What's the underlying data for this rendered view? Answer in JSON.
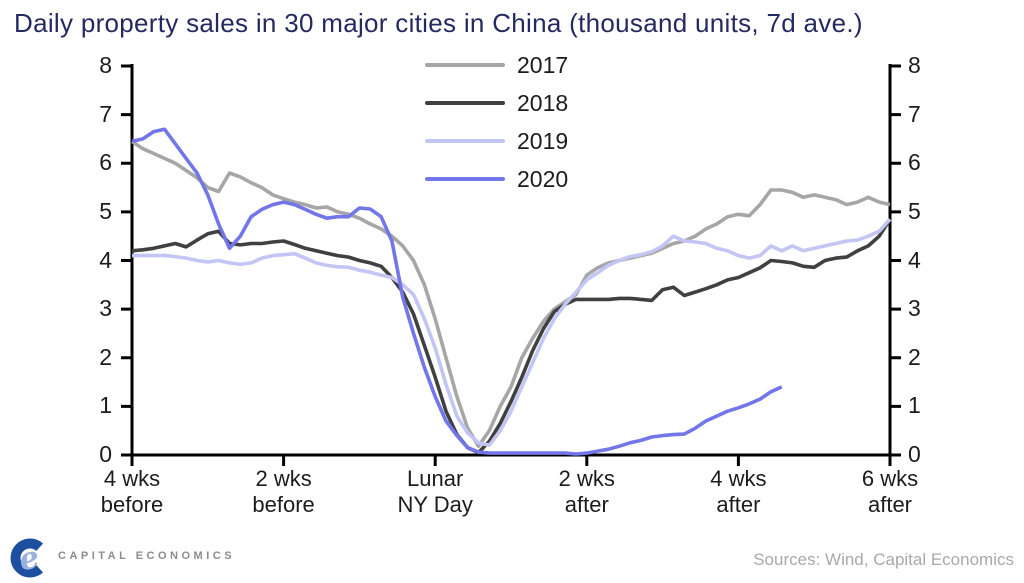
{
  "title": "Daily property sales in 30 major cities in China (thousand units, 7d ave.)",
  "footer": {
    "logo_text": "CAPITAL ECONOMICS",
    "sources": "Sources: Wind, Capital Economics"
  },
  "colors": {
    "title": "#242a60",
    "axis": "#000000",
    "tick_label": "#1c1c1c",
    "sources_text": "#a9a9a9",
    "logo_c": "#1d4fa0",
    "logo_e": "#9bb1dd",
    "logo_text": "#8c8c8c"
  },
  "chart_data": {
    "type": "line",
    "title": "Daily property sales in 30 major cities in China (thousand units, 7d ave.)",
    "x_axis": {
      "unit": "days relative to Lunar New Year Day",
      "range": [
        -28,
        42
      ],
      "ticks": [
        {
          "pos": -28,
          "label": [
            "4 wks",
            "before"
          ]
        },
        {
          "pos": -14,
          "label": [
            "2 wks",
            "before"
          ]
        },
        {
          "pos": 0,
          "label": [
            "Lunar",
            "NY Day"
          ]
        },
        {
          "pos": 14,
          "label": [
            "2 wks",
            "after"
          ]
        },
        {
          "pos": 28,
          "label": [
            "4 wks",
            "after"
          ]
        },
        {
          "pos": 42,
          "label": [
            "6 wks",
            "after"
          ]
        }
      ]
    },
    "y_axis": {
      "min": 0,
      "max": 8,
      "tick_step": 1,
      "tick_labels": [
        "0",
        "1",
        "2",
        "3",
        "4",
        "5",
        "6",
        "7",
        "8"
      ],
      "sides": [
        "left",
        "right"
      ],
      "grid": false
    },
    "legend_position": "top-center",
    "series": [
      {
        "name": "2017",
        "color": "#a6a6a6",
        "points": [
          [
            -28,
            6.45
          ],
          [
            -27,
            6.3
          ],
          [
            -26,
            6.2
          ],
          [
            -25,
            6.1
          ],
          [
            -24,
            6.0
          ],
          [
            -23,
            5.85
          ],
          [
            -22,
            5.7
          ],
          [
            -21,
            5.5
          ],
          [
            -20,
            5.42
          ],
          [
            -19,
            5.8
          ],
          [
            -18,
            5.72
          ],
          [
            -17,
            5.6
          ],
          [
            -16,
            5.5
          ],
          [
            -15,
            5.35
          ],
          [
            -14,
            5.27
          ],
          [
            -13,
            5.2
          ],
          [
            -12,
            5.15
          ],
          [
            -11,
            5.08
          ],
          [
            -10,
            5.1
          ],
          [
            -9,
            5.0
          ],
          [
            -8,
            4.95
          ],
          [
            -7,
            4.87
          ],
          [
            -6,
            4.75
          ],
          [
            -5,
            4.65
          ],
          [
            -4,
            4.5
          ],
          [
            -3,
            4.3
          ],
          [
            -2,
            4.0
          ],
          [
            -1,
            3.5
          ],
          [
            0,
            2.8
          ],
          [
            1,
            2.0
          ],
          [
            2,
            1.2
          ],
          [
            3,
            0.55
          ],
          [
            4,
            0.18
          ],
          [
            5,
            0.5
          ],
          [
            6,
            1.0
          ],
          [
            7,
            1.4
          ],
          [
            8,
            2.0
          ],
          [
            9,
            2.4
          ],
          [
            10,
            2.75
          ],
          [
            11,
            3.0
          ],
          [
            12,
            3.15
          ],
          [
            13,
            3.3
          ],
          [
            14,
            3.7
          ],
          [
            15,
            3.85
          ],
          [
            16,
            3.95
          ],
          [
            17,
            4.0
          ],
          [
            18,
            4.05
          ],
          [
            19,
            4.1
          ],
          [
            20,
            4.15
          ],
          [
            21,
            4.25
          ],
          [
            22,
            4.35
          ],
          [
            23,
            4.4
          ],
          [
            24,
            4.5
          ],
          [
            25,
            4.65
          ],
          [
            26,
            4.75
          ],
          [
            27,
            4.9
          ],
          [
            28,
            4.95
          ],
          [
            29,
            4.92
          ],
          [
            30,
            5.15
          ],
          [
            31,
            5.45
          ],
          [
            32,
            5.45
          ],
          [
            33,
            5.4
          ],
          [
            34,
            5.3
          ],
          [
            35,
            5.35
          ],
          [
            36,
            5.3
          ],
          [
            37,
            5.25
          ],
          [
            38,
            5.15
          ],
          [
            39,
            5.2
          ],
          [
            40,
            5.3
          ],
          [
            41,
            5.2
          ],
          [
            42,
            5.15
          ]
        ]
      },
      {
        "name": "2018",
        "color": "#404040",
        "points": [
          [
            -28,
            4.2
          ],
          [
            -27,
            4.22
          ],
          [
            -26,
            4.25
          ],
          [
            -25,
            4.3
          ],
          [
            -24,
            4.35
          ],
          [
            -23,
            4.28
          ],
          [
            -22,
            4.42
          ],
          [
            -21,
            4.55
          ],
          [
            -20,
            4.6
          ],
          [
            -19,
            4.35
          ],
          [
            -18,
            4.32
          ],
          [
            -17,
            4.35
          ],
          [
            -16,
            4.35
          ],
          [
            -15,
            4.38
          ],
          [
            -14,
            4.4
          ],
          [
            -13,
            4.33
          ],
          [
            -12,
            4.25
          ],
          [
            -11,
            4.2
          ],
          [
            -10,
            4.15
          ],
          [
            -9,
            4.1
          ],
          [
            -8,
            4.07
          ],
          [
            -7,
            4.0
          ],
          [
            -6,
            3.95
          ],
          [
            -5,
            3.88
          ],
          [
            -4,
            3.65
          ],
          [
            -3,
            3.35
          ],
          [
            -2,
            2.9
          ],
          [
            -1,
            2.25
          ],
          [
            0,
            1.6
          ],
          [
            1,
            0.9
          ],
          [
            2,
            0.42
          ],
          [
            3,
            0.15
          ],
          [
            4,
            0.05
          ],
          [
            5,
            0.28
          ],
          [
            6,
            0.65
          ],
          [
            7,
            1.1
          ],
          [
            8,
            1.6
          ],
          [
            9,
            2.15
          ],
          [
            10,
            2.6
          ],
          [
            11,
            2.95
          ],
          [
            12,
            3.1
          ],
          [
            13,
            3.2
          ],
          [
            14,
            3.2
          ],
          [
            15,
            3.2
          ],
          [
            16,
            3.2
          ],
          [
            17,
            3.22
          ],
          [
            18,
            3.22
          ],
          [
            19,
            3.2
          ],
          [
            20,
            3.18
          ],
          [
            21,
            3.4
          ],
          [
            22,
            3.45
          ],
          [
            23,
            3.28
          ],
          [
            24,
            3.35
          ],
          [
            25,
            3.42
          ],
          [
            26,
            3.5
          ],
          [
            27,
            3.6
          ],
          [
            28,
            3.65
          ],
          [
            29,
            3.75
          ],
          [
            30,
            3.85
          ],
          [
            31,
            4.0
          ],
          [
            32,
            3.98
          ],
          [
            33,
            3.95
          ],
          [
            34,
            3.88
          ],
          [
            35,
            3.86
          ],
          [
            36,
            4.0
          ],
          [
            37,
            4.05
          ],
          [
            38,
            4.07
          ],
          [
            39,
            4.2
          ],
          [
            40,
            4.3
          ],
          [
            41,
            4.5
          ],
          [
            42,
            4.85
          ]
        ]
      },
      {
        "name": "2019",
        "color": "#c3c6f5",
        "points": [
          [
            -28,
            4.1
          ],
          [
            -27,
            4.1
          ],
          [
            -26,
            4.1
          ],
          [
            -25,
            4.1
          ],
          [
            -24,
            4.08
          ],
          [
            -23,
            4.05
          ],
          [
            -22,
            4.0
          ],
          [
            -21,
            3.97
          ],
          [
            -20,
            4.0
          ],
          [
            -19,
            3.95
          ],
          [
            -18,
            3.92
          ],
          [
            -17,
            3.95
          ],
          [
            -16,
            4.05
          ],
          [
            -15,
            4.1
          ],
          [
            -14,
            4.12
          ],
          [
            -13,
            4.14
          ],
          [
            -12,
            4.05
          ],
          [
            -11,
            3.95
          ],
          [
            -10,
            3.9
          ],
          [
            -9,
            3.87
          ],
          [
            -8,
            3.86
          ],
          [
            -7,
            3.8
          ],
          [
            -6,
            3.76
          ],
          [
            -5,
            3.7
          ],
          [
            -4,
            3.65
          ],
          [
            -3,
            3.5
          ],
          [
            -2,
            3.3
          ],
          [
            -1,
            2.8
          ],
          [
            0,
            2.2
          ],
          [
            1,
            1.45
          ],
          [
            2,
            0.8
          ],
          [
            3,
            0.45
          ],
          [
            4,
            0.25
          ],
          [
            5,
            0.2
          ],
          [
            6,
            0.5
          ],
          [
            7,
            0.9
          ],
          [
            8,
            1.4
          ],
          [
            9,
            1.9
          ],
          [
            10,
            2.4
          ],
          [
            11,
            2.8
          ],
          [
            12,
            3.1
          ],
          [
            13,
            3.35
          ],
          [
            14,
            3.6
          ],
          [
            15,
            3.75
          ],
          [
            16,
            3.9
          ],
          [
            17,
            4.0
          ],
          [
            18,
            4.08
          ],
          [
            19,
            4.12
          ],
          [
            20,
            4.18
          ],
          [
            21,
            4.3
          ],
          [
            22,
            4.5
          ],
          [
            23,
            4.4
          ],
          [
            24,
            4.38
          ],
          [
            25,
            4.35
          ],
          [
            26,
            4.25
          ],
          [
            27,
            4.2
          ],
          [
            28,
            4.1
          ],
          [
            29,
            4.05
          ],
          [
            30,
            4.1
          ],
          [
            31,
            4.3
          ],
          [
            32,
            4.2
          ],
          [
            33,
            4.3
          ],
          [
            34,
            4.2
          ],
          [
            35,
            4.25
          ],
          [
            36,
            4.3
          ],
          [
            37,
            4.35
          ],
          [
            38,
            4.4
          ],
          [
            39,
            4.42
          ],
          [
            40,
            4.5
          ],
          [
            41,
            4.6
          ],
          [
            42,
            4.85
          ]
        ]
      },
      {
        "name": "2020",
        "color": "#7276e8",
        "points": [
          [
            -28,
            6.45
          ],
          [
            -27,
            6.5
          ],
          [
            -26,
            6.65
          ],
          [
            -25,
            6.7
          ],
          [
            -24,
            6.4
          ],
          [
            -23,
            6.1
          ],
          [
            -22,
            5.8
          ],
          [
            -21,
            5.35
          ],
          [
            -20,
            4.75
          ],
          [
            -19,
            4.25
          ],
          [
            -18,
            4.5
          ],
          [
            -17,
            4.9
          ],
          [
            -16,
            5.05
          ],
          [
            -15,
            5.15
          ],
          [
            -14,
            5.2
          ],
          [
            -13,
            5.15
          ],
          [
            -12,
            5.05
          ],
          [
            -11,
            4.95
          ],
          [
            -10,
            4.87
          ],
          [
            -9,
            4.9
          ],
          [
            -8,
            4.9
          ],
          [
            -7,
            5.08
          ],
          [
            -6,
            5.06
          ],
          [
            -5,
            4.9
          ],
          [
            -4,
            4.4
          ],
          [
            -3,
            3.25
          ],
          [
            -2,
            2.5
          ],
          [
            -1,
            1.8
          ],
          [
            0,
            1.2
          ],
          [
            1,
            0.7
          ],
          [
            2,
            0.4
          ],
          [
            3,
            0.15
          ],
          [
            4,
            0.06
          ],
          [
            5,
            0.04
          ],
          [
            6,
            0.04
          ],
          [
            7,
            0.04
          ],
          [
            8,
            0.04
          ],
          [
            9,
            0.04
          ],
          [
            10,
            0.04
          ],
          [
            11,
            0.04
          ],
          [
            12,
            0.04
          ],
          [
            13,
            0.02
          ],
          [
            14,
            0.04
          ],
          [
            15,
            0.08
          ],
          [
            16,
            0.12
          ],
          [
            17,
            0.18
          ],
          [
            18,
            0.25
          ],
          [
            19,
            0.3
          ],
          [
            20,
            0.37
          ],
          [
            21,
            0.4
          ],
          [
            22,
            0.42
          ],
          [
            23,
            0.43
          ],
          [
            24,
            0.55
          ],
          [
            25,
            0.7
          ],
          [
            26,
            0.8
          ],
          [
            27,
            0.9
          ],
          [
            28,
            0.97
          ],
          [
            29,
            1.05
          ],
          [
            30,
            1.15
          ],
          [
            31,
            1.3
          ],
          [
            32,
            1.4
          ]
        ]
      }
    ]
  }
}
